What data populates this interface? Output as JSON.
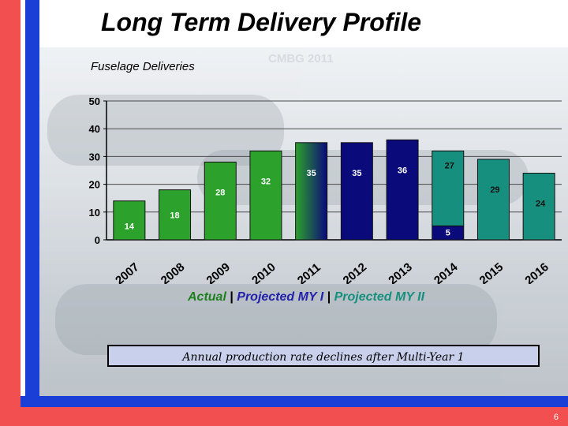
{
  "slide": {
    "title": "Long Term Delivery Profile",
    "subtitle_left": "Fuselage Deliveries",
    "subtitle_mid": "CMBG 2011",
    "legend": {
      "actual": "Actual",
      "sep": " | ",
      "projected_my1": "Projected MY I",
      "projected_my2": "Projected MY II"
    },
    "note": "Annual production rate declines after Multi-Year 1",
    "page_number": "6",
    "colors": {
      "actual": "#2ca12c",
      "projected_my1": "#0a0a7a",
      "projected_my2": "#178f7f",
      "red_stripe": "#f25050",
      "blue_stripe": "#1a3fd6"
    }
  },
  "chart_data": {
    "type": "bar",
    "categories": [
      "2007",
      "2008",
      "2009",
      "2010",
      "2011",
      "2012",
      "2013",
      "2014",
      "2015",
      "2016"
    ],
    "series": [
      {
        "values": [
          14,
          18,
          28,
          32,
          35,
          35,
          36,
          27,
          29,
          24
        ]
      },
      {
        "values": [
          0,
          0,
          0,
          0,
          0,
          0,
          0,
          5,
          0,
          0
        ]
      }
    ],
    "bar_groups": [
      "actual",
      "actual",
      "actual",
      "actual",
      "transition",
      "projected_my1",
      "projected_my1",
      "projected_my2_stack",
      "projected_my2",
      "projected_my2"
    ],
    "data_labels": [
      "14",
      "18",
      "28",
      "32",
      "35",
      "35",
      "36",
      "27",
      "29",
      "24"
    ],
    "stack_labels": [
      "",
      "",
      "",
      "",
      "",
      "",
      "",
      "5",
      "",
      ""
    ],
    "y_ticks": [
      "0",
      "10",
      "20",
      "30",
      "40",
      "50"
    ],
    "ylim": [
      0,
      50
    ],
    "grid": true
  }
}
